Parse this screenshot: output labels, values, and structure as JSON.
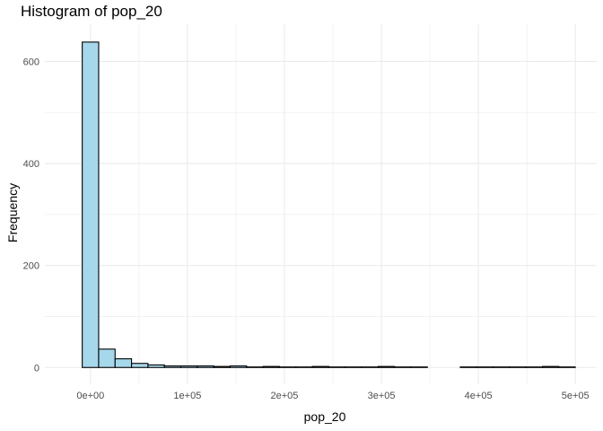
{
  "chart_data": {
    "type": "bar",
    "title": "Histogram of pop_20",
    "xlabel": "pop_20",
    "ylabel": "Frequency",
    "bin_edges": [
      -8473,
      8473,
      25419,
      42365,
      59311,
      76257,
      93203,
      110149,
      127095,
      144041,
      160987,
      177933,
      194879,
      211825,
      228771,
      245717,
      262663,
      279609,
      296555,
      313501,
      330447,
      347393,
      364339,
      381285,
      398231,
      415177,
      432123,
      449069,
      466015,
      482961,
      499907
    ],
    "values": [
      638,
      36,
      17,
      8,
      5,
      3,
      3,
      3,
      2,
      3,
      1,
      2,
      1,
      1,
      2,
      1,
      1,
      1,
      2,
      1,
      1,
      0,
      0,
      1,
      1,
      1,
      1,
      1,
      2,
      1
    ],
    "xlim": [
      -47000,
      522000
    ],
    "ylim": [
      -33,
      673
    ],
    "x_ticks": [
      0,
      100000,
      200000,
      300000,
      400000,
      500000
    ],
    "x_tick_labels": [
      "0e+00",
      "1e+05",
      "2e+05",
      "3e+05",
      "4e+05",
      "5e+05"
    ],
    "y_ticks": [
      0,
      200,
      400,
      600
    ],
    "y_tick_labels": [
      "0",
      "200",
      "400",
      "600"
    ],
    "grid": true,
    "colors": {
      "fill": "#a6d8ec",
      "outline": "#000000",
      "grid": "#ebebeb"
    }
  }
}
